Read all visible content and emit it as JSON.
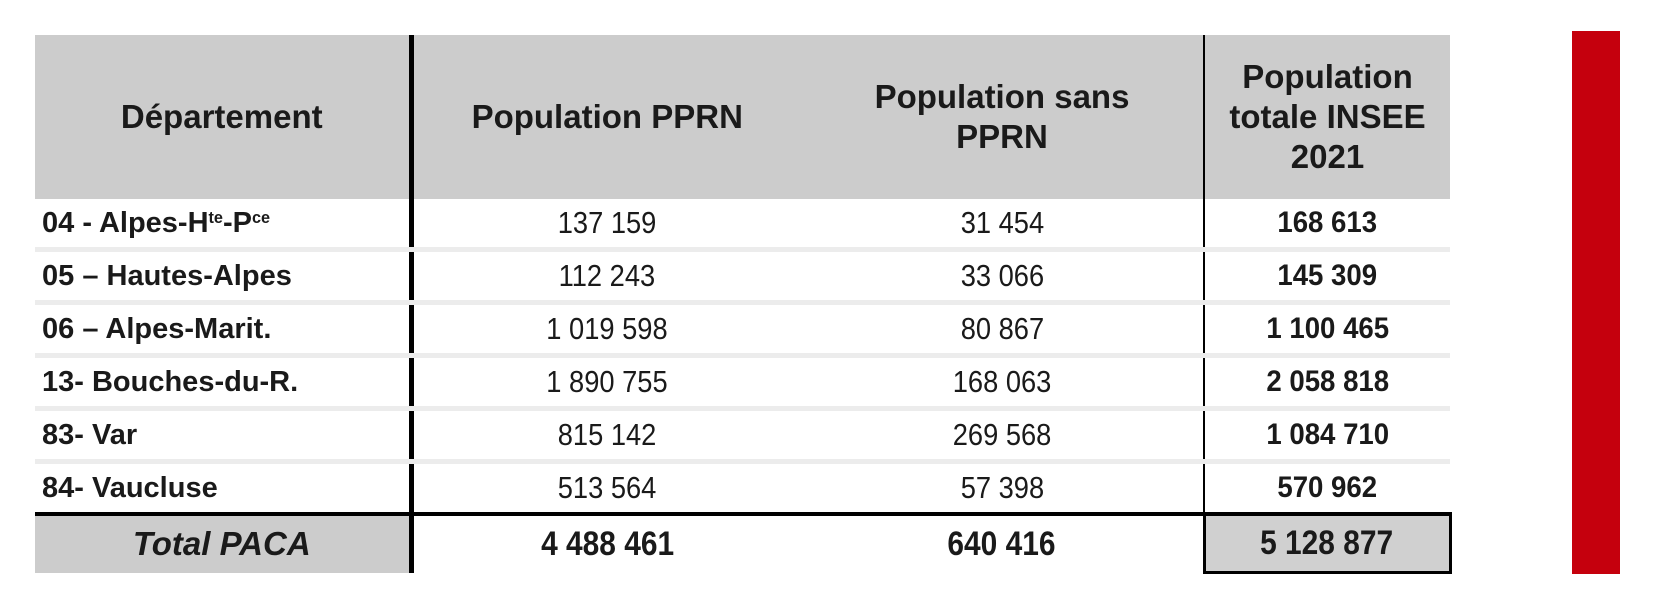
{
  "colors": {
    "header_bg": "#cccccc",
    "total_cell_bg": "#d0d0d0",
    "separator": "#ececec",
    "red_bar": "#c5000d"
  },
  "table": {
    "headers": [
      {
        "label": "Département"
      },
      {
        "label": "Population PPRN"
      },
      {
        "label": "Population sans PPRN"
      },
      {
        "label": "Population totale INSEE 2021"
      }
    ],
    "rows": [
      {
        "dept_parts": [
          [
            "04 - Alpes-H",
            false
          ],
          [
            "te",
            true
          ],
          [
            "-P",
            false
          ],
          [
            "ce",
            true
          ]
        ],
        "pop_pprn": "137 159",
        "pop_sans_pprn": "31 454",
        "pop_totale": "168 613"
      },
      {
        "dept_parts": [
          [
            "05 – Hautes-Alpes",
            false
          ]
        ],
        "pop_pprn": "112 243",
        "pop_sans_pprn": "33 066",
        "pop_totale": "145 309"
      },
      {
        "dept_parts": [
          [
            "06 – Alpes-Marit.",
            false
          ]
        ],
        "pop_pprn": "1 019 598",
        "pop_sans_pprn": "80 867",
        "pop_totale": "1 100 465"
      },
      {
        "dept_parts": [
          [
            "13- Bouches-du-R.",
            false
          ]
        ],
        "pop_pprn": "1 890 755",
        "pop_sans_pprn": "168 063",
        "pop_totale": "2 058 818"
      },
      {
        "dept_parts": [
          [
            "83- Var",
            false
          ]
        ],
        "pop_pprn": "815 142",
        "pop_sans_pprn": "269 568",
        "pop_totale": "1 084 710"
      },
      {
        "dept_parts": [
          [
            "84- Vaucluse",
            false
          ]
        ],
        "pop_pprn": "513 564",
        "pop_sans_pprn": "57 398",
        "pop_totale": "570 962"
      }
    ],
    "total_row": {
      "label": "Total PACA",
      "pop_pprn": "4 488 461",
      "pop_sans_pprn": "640 416",
      "pop_totale": "5 128 877"
    }
  }
}
